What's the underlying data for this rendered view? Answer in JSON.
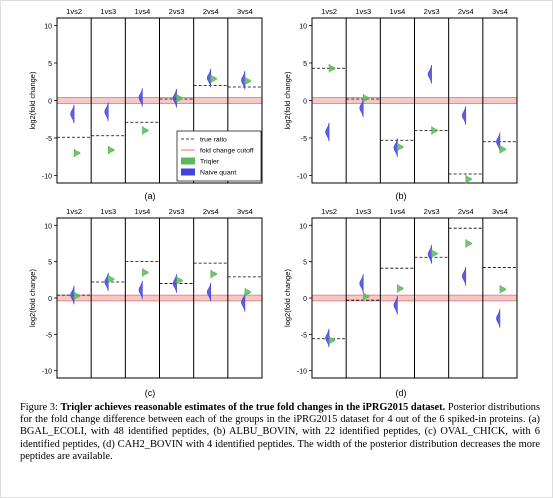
{
  "figure": {
    "caption": {
      "prefix": "Figure 3: ",
      "bold": "Triqler achieves reasonable estimates of the true fold changes in the iPRG2015 dataset.",
      "text": " Posterior distributions for the fold change difference between each of the groups in the iPRG2015 dataset for 4 out of the 6 spiked-in proteins. (a) BGAL_ECOLI, with 48 identified peptides, (b) ALBU_BOVIN, with 22 identified peptides, (c) OVAL_CHICK, with 6 identified peptides, (d) CAH2_BOVIN with 4 identified peptides. The width of the posterior distribution decreases the more peptides are available."
    }
  },
  "chart_data": [
    {
      "type": "violin",
      "panel_label": "(a)",
      "ylabel": "log2(fold change)",
      "ylim": [
        -11,
        11
      ],
      "yticks": [
        -10,
        -5,
        0,
        5,
        10
      ],
      "categories": [
        "1vs2",
        "1vs3",
        "1vs4",
        "2vs3",
        "2vs4",
        "3vs4"
      ],
      "true_ratio": [
        -4.9,
        -4.7,
        -2.9,
        0.2,
        2.0,
        1.8
      ],
      "triqler": [
        -7.0,
        -6.6,
        -4.0,
        0.3,
        2.9,
        2.6
      ],
      "naive": [
        -1.8,
        -1.5,
        0.4,
        0.3,
        3.0,
        2.7
      ],
      "fold_change_cutoff": [
        -0.4,
        0.4
      ],
      "legend": {
        "entries": [
          "true ratio",
          "fold change cutoff",
          "Triqler",
          "Naive quant"
        ],
        "position": "lower-right"
      }
    },
    {
      "type": "violin",
      "panel_label": "(b)",
      "ylabel": "log2(fold change)",
      "ylim": [
        -11,
        11
      ],
      "yticks": [
        -10,
        -5,
        0,
        5,
        10
      ],
      "categories": [
        "1vs2",
        "1vs3",
        "1vs4",
        "2vs3",
        "2vs4",
        "3vs4"
      ],
      "true_ratio": [
        4.3,
        0.2,
        -5.3,
        -4.0,
        -9.8,
        -5.5
      ],
      "triqler": [
        4.3,
        0.3,
        -6.2,
        -4.0,
        -10.5,
        -6.5
      ],
      "naive": [
        -4.2,
        -1.0,
        -6.3,
        3.5,
        -2.0,
        -5.5
      ]
    },
    {
      "type": "violin",
      "panel_label": "(c)",
      "ylabel": "log2(fold change)",
      "ylim": [
        -11,
        11
      ],
      "yticks": [
        -10,
        -5,
        0,
        5,
        10
      ],
      "categories": [
        "1vs2",
        "1vs3",
        "1vs4",
        "2vs3",
        "2vs4",
        "3vs4"
      ],
      "true_ratio": [
        0.4,
        2.2,
        5.0,
        2.0,
        4.8,
        2.9
      ],
      "triqler": [
        0.3,
        2.6,
        3.5,
        2.4,
        3.3,
        0.8
      ],
      "naive": [
        0.4,
        2.2,
        1.1,
        2.0,
        0.8,
        -0.6
      ]
    },
    {
      "type": "violin",
      "panel_label": "(d)",
      "ylabel": "log2(fold change)",
      "ylim": [
        -11,
        11
      ],
      "yticks": [
        -10,
        -5,
        0,
        5,
        10
      ],
      "categories": [
        "1vs2",
        "1vs3",
        "1vs4",
        "2vs3",
        "2vs4",
        "3vs4"
      ],
      "true_ratio": [
        -5.6,
        -0.3,
        4.1,
        5.6,
        9.6,
        4.2
      ],
      "triqler": [
        -5.8,
        0.2,
        1.3,
        6.1,
        7.5,
        1.2
      ],
      "naive": [
        -5.5,
        2.0,
        -1.0,
        6.0,
        3.0,
        -2.8
      ]
    }
  ],
  "colors": {
    "triqler": "#5cb85c",
    "naive": "#4444dd",
    "cutoff_fill": "#f7c6c6",
    "cutoff_line": "#e07070",
    "true_ratio": "#000000"
  }
}
